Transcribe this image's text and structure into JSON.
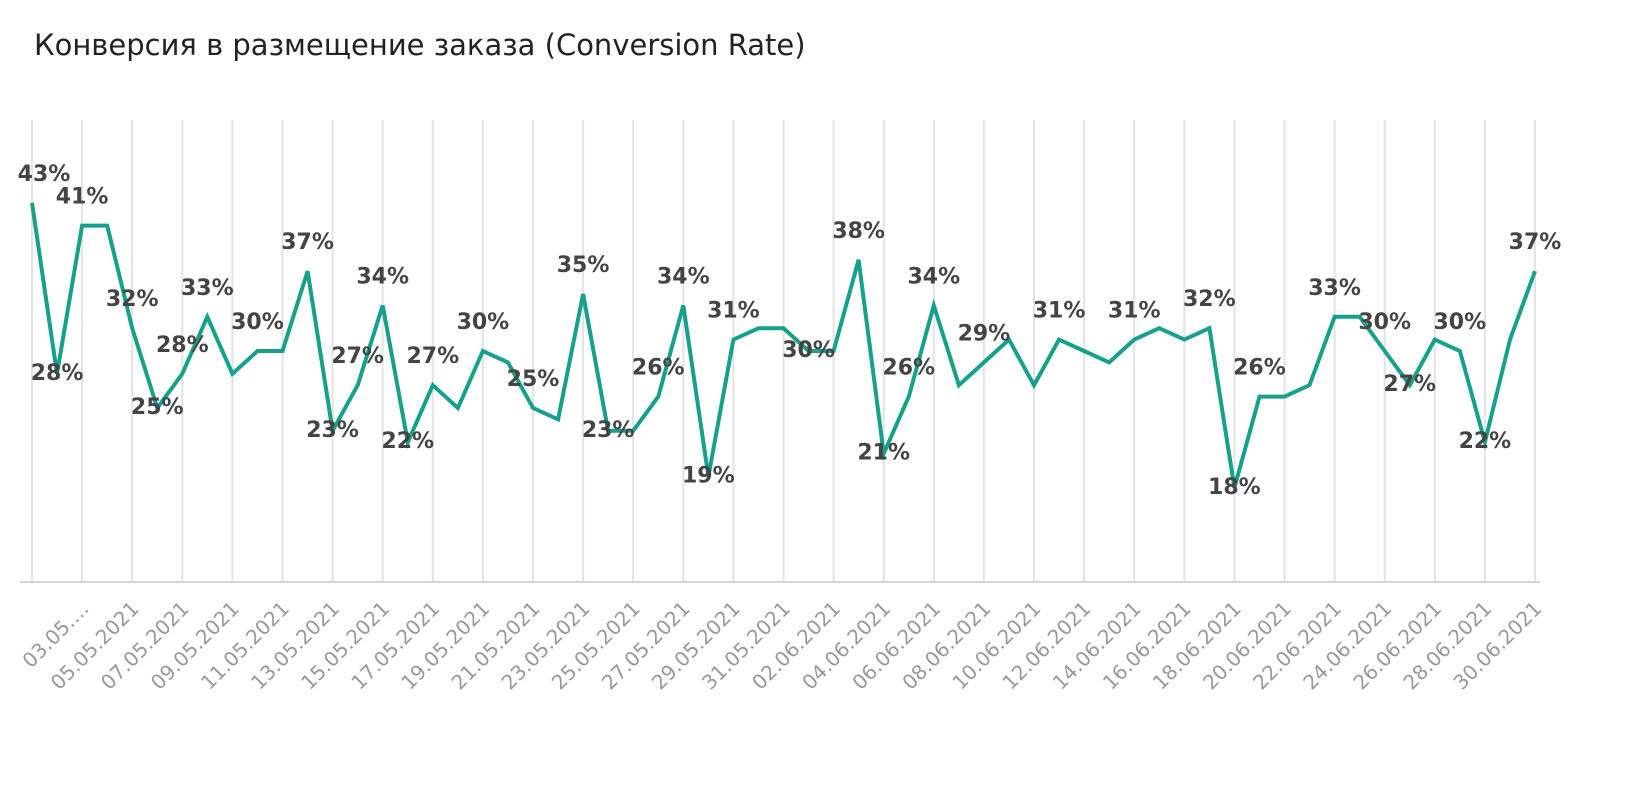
{
  "chart_data": {
    "type": "line",
    "title": "Конверсия в размещение заказа (Conversion Rate)",
    "categories": [
      null,
      null,
      "03.05.…",
      null,
      "05.05.2021",
      null,
      "07.05.2021",
      null,
      "09.05.2021",
      null,
      "11.05.2021",
      null,
      "13.05.2021",
      null,
      "15.05.2021",
      null,
      "17.05.2021",
      null,
      "19.05.2021",
      null,
      "21.05.2021",
      null,
      "23.05.2021",
      null,
      "25.05.2021",
      null,
      "27.05.2021",
      null,
      "29.05.2021",
      null,
      "31.05.2021",
      null,
      "02.06.2021",
      null,
      "04.06.2021",
      null,
      "06.06.2021",
      null,
      "08.06.2021",
      null,
      "10.06.2021",
      null,
      "12.06.2021",
      null,
      "14.06.2021",
      null,
      "16.06.2021",
      null,
      "18.06.2021",
      null,
      "20.06.2021",
      null,
      "22.06.2021",
      null,
      "24.06.2021",
      null,
      "26.06.2021",
      null,
      "28.06.2021",
      null,
      "30.06.2021"
    ],
    "series": [
      {
        "name": "Conversion Rate",
        "color": "#17a08b",
        "values": [
          43,
          28,
          41,
          41,
          32,
          25,
          28,
          33,
          28,
          30,
          30,
          37,
          23,
          27,
          34,
          22,
          27,
          25,
          30,
          29,
          25,
          24,
          35,
          23,
          23,
          26,
          34,
          19,
          31,
          32,
          32,
          30,
          30,
          38,
          21,
          26,
          34,
          27,
          29,
          31,
          27,
          31,
          30,
          29,
          31,
          32,
          31,
          32,
          18,
          26,
          26,
          27,
          33,
          33,
          30,
          27,
          31,
          30,
          22,
          31,
          37
        ],
        "value_labels": [
          "43%",
          "28%",
          "41%",
          null,
          "32%",
          "25%",
          "28%",
          "33%",
          null,
          "30%",
          null,
          "37%",
          "23%",
          "27%",
          "34%",
          "22%",
          "27%",
          null,
          "30%",
          null,
          "25%",
          null,
          "35%",
          "23%",
          null,
          "26%",
          "34%",
          "19%",
          "31%",
          null,
          null,
          "30%",
          null,
          "38%",
          "21%",
          "26%",
          "34%",
          null,
          "29%",
          null,
          null,
          "31%",
          null,
          null,
          "31%",
          null,
          null,
          "32%",
          "18%",
          "26%",
          null,
          null,
          "33%",
          null,
          "30%",
          "27%",
          null,
          "30%",
          "22%",
          null,
          "37%"
        ]
      }
    ],
    "ylim": [
      10,
      50
    ],
    "grid": true
  }
}
